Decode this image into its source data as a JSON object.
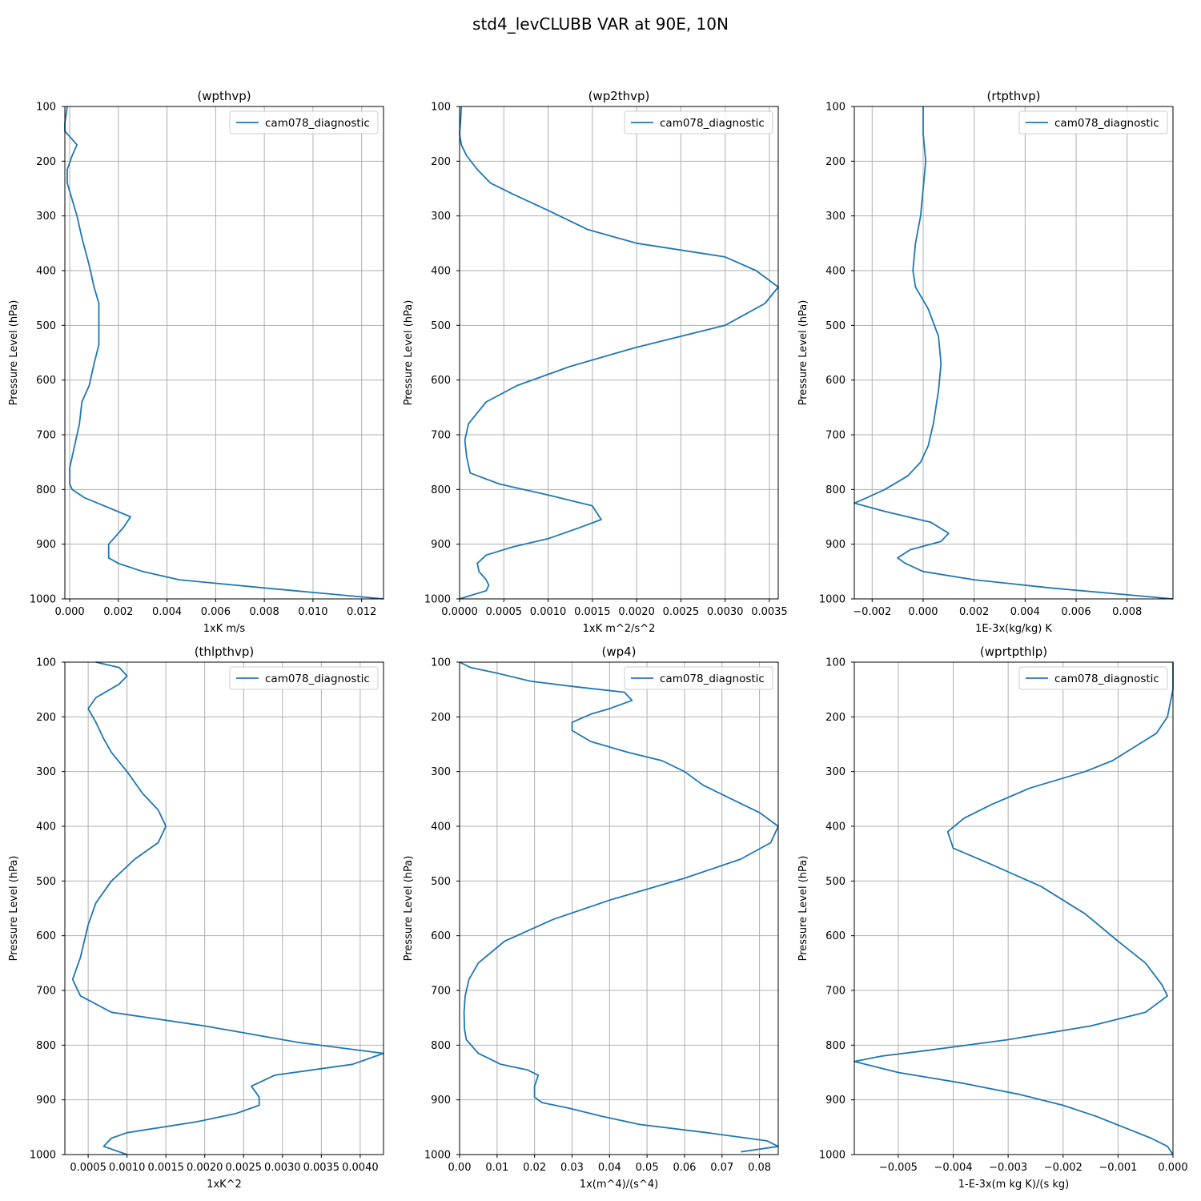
{
  "figure": {
    "title": "std4_levCLUBB VAR at 90E, 10N"
  },
  "colors": {
    "series": "#1f77b4",
    "grid": "#b0b0b0",
    "legend_border": "#cccccc"
  },
  "chart_data": [
    {
      "type": "line",
      "title": "(wpthvp)",
      "xlabel": "1xK m/s",
      "ylabel": "Pressure Level (hPa)",
      "xlim": [
        -0.0002,
        0.0129
      ],
      "ylim": [
        1000,
        100
      ],
      "xticks": [
        0.0,
        0.002,
        0.004,
        0.006,
        0.008,
        0.01,
        0.012
      ],
      "xtick_labels": [
        "0.000",
        "0.002",
        "0.004",
        "0.006",
        "0.008",
        "0.010",
        "0.012"
      ],
      "yticks": [
        100,
        200,
        300,
        400,
        500,
        600,
        700,
        800,
        900,
        1000
      ],
      "ytick_labels": [
        "100",
        "200",
        "300",
        "400",
        "500",
        "600",
        "700",
        "800",
        "900",
        "1000"
      ],
      "grid": true,
      "legend": "upper-right",
      "series": [
        {
          "name": "cam078_diagnostic",
          "x": [
            -0.0001,
            -0.0002,
            -0.0002,
            0.0003,
            0.0001,
            -0.0001,
            -0.0001,
            0.0001,
            0.0003,
            0.0005,
            0.0008,
            0.001,
            0.0012,
            0.0012,
            0.0012,
            0.001,
            0.0008,
            0.0005,
            0.0004,
            0.0002,
            0.0,
            0.0,
            0.0,
            0.0001,
            0.0006,
            0.0017,
            0.0025,
            0.0022,
            0.0016,
            0.0016,
            0.002,
            0.003,
            0.0045,
            0.008,
            0.0129
          ],
          "y": [
            100,
            130,
            145,
            170,
            190,
            215,
            240,
            270,
            300,
            340,
            390,
            430,
            460,
            500,
            535,
            570,
            610,
            640,
            680,
            720,
            760,
            780,
            790,
            800,
            815,
            835,
            850,
            870,
            900,
            925,
            935,
            950,
            965,
            980,
            1000
          ]
        }
      ]
    },
    {
      "type": "line",
      "title": "(wp2thvp)",
      "xlabel": "1xK m^2/s^2",
      "ylabel": "Pressure Level (hPa)",
      "xlim": [
        0,
        0.0036
      ],
      "ylim": [
        1000,
        100
      ],
      "xticks": [
        0.0,
        0.0005,
        0.001,
        0.0015,
        0.002,
        0.0025,
        0.003,
        0.0035
      ],
      "xtick_labels": [
        "0.0000",
        "0.0005",
        "0.0010",
        "0.0015",
        "0.0020",
        "0.0025",
        "0.0030",
        "0.0035"
      ],
      "yticks": [
        100,
        200,
        300,
        400,
        500,
        600,
        700,
        800,
        900,
        1000
      ],
      "ytick_labels": [
        "100",
        "200",
        "300",
        "400",
        "500",
        "600",
        "700",
        "800",
        "900",
        "1000"
      ],
      "grid": true,
      "legend": "upper-right",
      "series": [
        {
          "name": "cam078_diagnostic",
          "x": [
            2e-05,
            1e-05,
            0.0,
            2e-05,
            8e-05,
            0.0002,
            0.00035,
            0.0006,
            0.001,
            0.00145,
            0.002,
            0.003,
            0.00335,
            0.0036,
            0.00345,
            0.003,
            0.002,
            0.00125,
            0.00065,
            0.0003,
            0.0001,
            6e-05,
            8e-05,
            0.00012,
            0.00045,
            0.001,
            0.0015,
            0.0016,
            0.00135,
            0.001,
            0.0006,
            0.0003,
            0.0002,
            0.00022,
            0.0003,
            0.00033,
            0.0003,
            0.0
          ],
          "y": [
            100,
            130,
            150,
            170,
            190,
            215,
            240,
            260,
            290,
            325,
            350,
            375,
            400,
            430,
            460,
            500,
            540,
            575,
            610,
            640,
            680,
            710,
            740,
            770,
            790,
            810,
            830,
            855,
            870,
            890,
            905,
            920,
            935,
            950,
            965,
            975,
            985,
            1000
          ]
        }
      ]
    },
    {
      "type": "line",
      "title": "(rtpthvp)",
      "xlabel": "1E-3x(kg/kg) K",
      "ylabel": "Pressure Level (hPa)",
      "xlim": [
        -0.0027,
        0.0098
      ],
      "ylim": [
        1000,
        100
      ],
      "xticks": [
        -0.002,
        0.0,
        0.002,
        0.004,
        0.006,
        0.008
      ],
      "xtick_labels": [
        "−0.002",
        "0.000",
        "0.002",
        "0.004",
        "0.006",
        "0.008"
      ],
      "yticks": [
        100,
        200,
        300,
        400,
        500,
        600,
        700,
        800,
        900,
        1000
      ],
      "ytick_labels": [
        "100",
        "200",
        "300",
        "400",
        "500",
        "600",
        "700",
        "800",
        "900",
        "1000"
      ],
      "grid": true,
      "legend": "upper-right",
      "series": [
        {
          "name": "cam078_diagnostic",
          "x": [
            0.0,
            0.0,
            0.0001,
            0.0,
            -0.0001,
            -0.0003,
            -0.0004,
            -0.0003,
            0.0002,
            0.0006,
            0.0007,
            0.0006,
            0.0004,
            0.0002,
            -0.0001,
            -0.0006,
            -0.0015,
            -0.0022,
            -0.0027,
            -0.0015,
            0.0003,
            0.001,
            0.0007,
            -0.0005,
            -0.001,
            -0.0007,
            0.0,
            0.002,
            0.005,
            0.0098
          ],
          "y": [
            100,
            150,
            200,
            250,
            300,
            350,
            400,
            430,
            470,
            520,
            570,
            620,
            680,
            720,
            750,
            775,
            800,
            815,
            825,
            840,
            860,
            880,
            895,
            910,
            925,
            935,
            950,
            965,
            980,
            1000
          ]
        }
      ]
    },
    {
      "type": "line",
      "title": "(thlpthvp)",
      "xlabel": "1xK^2",
      "ylabel": "Pressure Level (hPa)",
      "xlim": [
        0.0002,
        0.0043
      ],
      "ylim": [
        1000,
        100
      ],
      "xticks": [
        0.0005,
        0.001,
        0.0015,
        0.002,
        0.0025,
        0.003,
        0.0035,
        0.004
      ],
      "xtick_labels": [
        "0.0005",
        "0.0010",
        "0.0015",
        "0.0020",
        "0.0025",
        "0.0030",
        "0.0035",
        "0.0040"
      ],
      "yticks": [
        100,
        200,
        300,
        400,
        500,
        600,
        700,
        800,
        900,
        1000
      ],
      "ytick_labels": [
        "100",
        "200",
        "300",
        "400",
        "500",
        "600",
        "700",
        "800",
        "900",
        "1000"
      ],
      "grid": true,
      "legend": "upper-right",
      "series": [
        {
          "name": "cam078_diagnostic",
          "x": [
            0.0006,
            0.0009,
            0.001,
            0.0009,
            0.0006,
            0.0005,
            0.0006,
            0.0007,
            0.0008,
            0.001,
            0.0012,
            0.0014,
            0.0015,
            0.0014,
            0.0011,
            0.0008,
            0.0006,
            0.0005,
            0.0004,
            0.0003,
            0.0004,
            0.0008,
            0.002,
            0.0032,
            0.0043,
            0.0039,
            0.0029,
            0.0026,
            0.0027,
            0.0027,
            0.0024,
            0.0019,
            0.001,
            0.0008,
            0.0007,
            0.001
          ],
          "y": [
            100,
            110,
            125,
            140,
            165,
            185,
            210,
            240,
            265,
            300,
            340,
            370,
            400,
            430,
            460,
            500,
            540,
            580,
            640,
            680,
            710,
            740,
            765,
            795,
            815,
            835,
            855,
            875,
            895,
            910,
            925,
            940,
            960,
            970,
            985,
            1000
          ]
        }
      ]
    },
    {
      "type": "line",
      "title": "(wp4)",
      "xlabel": "1x(m^4)/(s^4)",
      "ylabel": "Pressure Level (hPa)",
      "xlim": [
        0,
        0.085
      ],
      "ylim": [
        1000,
        100
      ],
      "xticks": [
        0.0,
        0.01,
        0.02,
        0.03,
        0.04,
        0.05,
        0.06,
        0.07,
        0.08
      ],
      "xtick_labels": [
        "0.00",
        "0.01",
        "0.02",
        "0.03",
        "0.04",
        "0.05",
        "0.06",
        "0.07",
        "0.08"
      ],
      "yticks": [
        100,
        200,
        300,
        400,
        500,
        600,
        700,
        800,
        900,
        1000
      ],
      "ytick_labels": [
        "100",
        "200",
        "300",
        "400",
        "500",
        "600",
        "700",
        "800",
        "900",
        "1000"
      ],
      "grid": true,
      "legend": "upper-right",
      "series": [
        {
          "name": "cam078_diagnostic",
          "x": [
            0.0,
            0.003,
            0.01,
            0.019,
            0.031,
            0.044,
            0.046,
            0.04,
            0.035,
            0.03,
            0.03,
            0.035,
            0.045,
            0.054,
            0.06,
            0.065,
            0.071,
            0.08,
            0.085,
            0.083,
            0.075,
            0.06,
            0.04,
            0.025,
            0.012,
            0.005,
            0.0025,
            0.0015,
            0.0012,
            0.0013,
            0.0018,
            0.005,
            0.011,
            0.018,
            0.021,
            0.02,
            0.02,
            0.022,
            0.029,
            0.038,
            0.048,
            0.066,
            0.082,
            0.085,
            0.075
          ],
          "y": [
            100,
            110,
            120,
            135,
            145,
            155,
            170,
            185,
            195,
            210,
            225,
            245,
            265,
            280,
            300,
            325,
            345,
            375,
            400,
            430,
            460,
            495,
            535,
            570,
            610,
            650,
            680,
            710,
            740,
            770,
            790,
            815,
            835,
            845,
            855,
            875,
            895,
            905,
            915,
            930,
            945,
            960,
            975,
            985,
            995
          ]
        }
      ]
    },
    {
      "type": "line",
      "title": "(wprtpthlp)",
      "xlabel": "1-E-3x(m kg K)/(s kg)",
      "ylabel": "Pressure Level (hPa)",
      "xlim": [
        -0.0058,
        0.0
      ],
      "ylim": [
        1000,
        100
      ],
      "xticks": [
        -0.005,
        -0.004,
        -0.003,
        -0.002,
        -0.001,
        0.0
      ],
      "xtick_labels": [
        "−0.005",
        "−0.004",
        "−0.003",
        "−0.002",
        "−0.001",
        "0.000"
      ],
      "yticks": [
        100,
        200,
        300,
        400,
        500,
        600,
        700,
        800,
        900,
        1000
      ],
      "ytick_labels": [
        "100",
        "200",
        "300",
        "400",
        "500",
        "600",
        "700",
        "800",
        "900",
        "1000"
      ],
      "grid": true,
      "legend": "upper-right",
      "series": [
        {
          "name": "cam078_diagnostic",
          "x": [
            0.0,
            0.0,
            -0.0001,
            -0.0003,
            -0.0007,
            -0.0011,
            -0.0016,
            -0.0026,
            -0.0033,
            -0.0038,
            -0.0041,
            -0.004,
            -0.0033,
            -0.0024,
            -0.0016,
            -0.001,
            -0.0005,
            -0.0002,
            -0.0001,
            -0.0005,
            -0.0015,
            -0.003,
            -0.0045,
            -0.0053,
            -0.0058,
            -0.005,
            -0.0038,
            -0.0028,
            -0.002,
            -0.0014,
            -0.0009,
            -0.0004,
            -0.0001,
            0.0
          ],
          "y": [
            100,
            150,
            200,
            230,
            255,
            280,
            300,
            330,
            360,
            385,
            410,
            440,
            470,
            510,
            560,
            610,
            650,
            690,
            710,
            740,
            765,
            790,
            810,
            820,
            830,
            850,
            870,
            890,
            910,
            930,
            950,
            970,
            985,
            1000
          ]
        }
      ]
    }
  ]
}
